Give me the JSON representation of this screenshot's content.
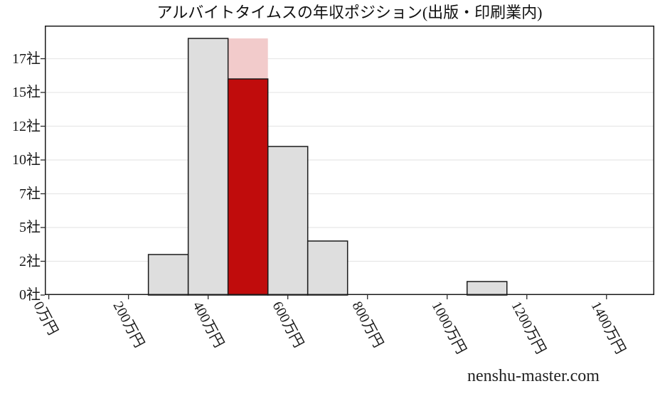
{
  "watermark": "nenshu-master.com",
  "chart_data": {
    "type": "bar",
    "subtype": "histogram",
    "title": "アルバイトタイムスの年収ポジション(出版・印刷業内)",
    "x_unit": "万円",
    "y_unit": "社",
    "xlim": [
      -10,
      1520
    ],
    "ylim": [
      0,
      19.95
    ],
    "grid": "horizontal",
    "legend": "none",
    "x_ticks": [
      {
        "value": 0,
        "label": "0万円"
      },
      {
        "value": 200,
        "label": "200万円"
      },
      {
        "value": 400,
        "label": "400万円"
      },
      {
        "value": 600,
        "label": "600万円"
      },
      {
        "value": 800,
        "label": "800万円"
      },
      {
        "value": 1000,
        "label": "1000万円"
      },
      {
        "value": 1200,
        "label": "1200万円"
      },
      {
        "value": 1400,
        "label": "1400万円"
      }
    ],
    "y_ticks": [
      {
        "value": 0,
        "label": "0社"
      },
      {
        "value": 2.5,
        "label": "2社"
      },
      {
        "value": 5,
        "label": "5社"
      },
      {
        "value": 7.5,
        "label": "7社"
      },
      {
        "value": 10,
        "label": "10社"
      },
      {
        "value": 12.5,
        "label": "12社"
      },
      {
        "value": 15,
        "label": "15社"
      },
      {
        "value": 17.5,
        "label": "17社"
      }
    ],
    "bin_width": 100,
    "bars": [
      {
        "x_start": 450,
        "x_end": 550,
        "count": 19,
        "role": "highlight-band"
      },
      {
        "x_start": 250,
        "x_end": 350,
        "count": 3,
        "role": "industry"
      },
      {
        "x_start": 350,
        "x_end": 450,
        "count": 19,
        "role": "industry"
      },
      {
        "x_start": 550,
        "x_end": 650,
        "count": 11,
        "role": "industry"
      },
      {
        "x_start": 650,
        "x_end": 750,
        "count": 4,
        "role": "industry"
      },
      {
        "x_start": 1050,
        "x_end": 1150,
        "count": 1,
        "role": "industry"
      },
      {
        "x_start": 450,
        "x_end": 550,
        "count": 16,
        "role": "company"
      }
    ],
    "colors": {
      "industry_fill": "#dedede",
      "company_fill": "#c00c0c",
      "highlight_band_fill": "#f2cbcb",
      "bar_edge": "#1a1a1a",
      "grid_line": "#e7e7e7",
      "spine": "#1a1a1a",
      "tick_mark": "#2a2a2a"
    }
  }
}
